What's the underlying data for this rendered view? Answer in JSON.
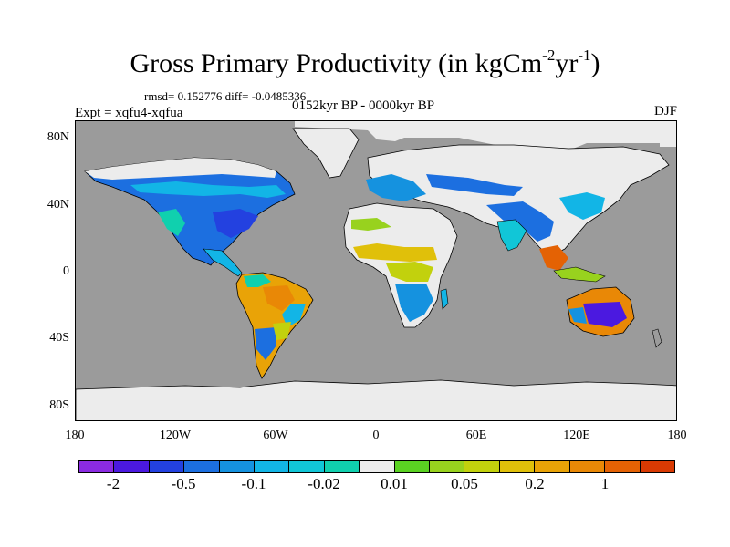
{
  "title": {
    "main": "Gross Primary Productivity (in kgCm",
    "sup1": "-2",
    "mid": "yr",
    "sup2": "-1",
    "end": ")"
  },
  "stats": "rmsd= 0.152776 diff= -0.0485336",
  "period": "0152kyr BP - 0000kyr BP",
  "experiment": "Expt = xqfu4-xqfua",
  "season": "DJF",
  "lat_labels": [
    "80N",
    "40N",
    "0",
    "40S",
    "80S"
  ],
  "lat_values": [
    80,
    40,
    0,
    -40,
    -80
  ],
  "lon_labels": [
    "180",
    "120W",
    "60W",
    "0",
    "60E",
    "120E",
    "180"
  ],
  "lon_values": [
    -180,
    -120,
    -60,
    0,
    60,
    120,
    180
  ],
  "colorbar": {
    "colors": [
      "#8b2be2",
      "#4b19e0",
      "#2341e0",
      "#1c6fe0",
      "#1592df",
      "#12b5e6",
      "#11c6d7",
      "#10d0ae",
      "#ececec",
      "#5ad222",
      "#98d21e",
      "#c2d10d",
      "#e0c00a",
      "#e9a307",
      "#e98806",
      "#e46204",
      "#d93a03"
    ],
    "labels": [
      "-2",
      "-0.5",
      "-0.1",
      "-0.02",
      "0.01",
      "0.05",
      "0.2",
      "1"
    ]
  },
  "legend_colors": {
    "ocean": "#9b9b9b",
    "no_change": "#ececec",
    "coast": "#000000"
  }
}
